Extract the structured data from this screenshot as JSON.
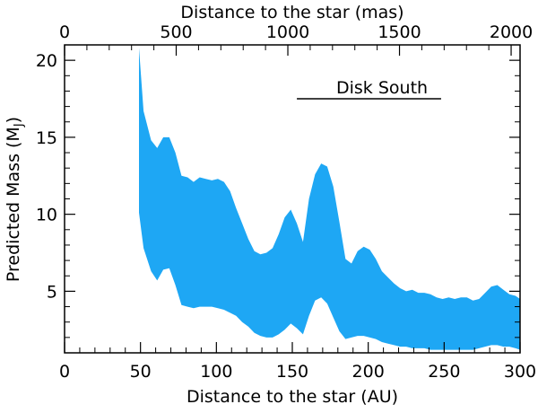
{
  "chart_data": {
    "type": "area",
    "subtype": "band",
    "xlabel": "Distance to the star (AU)",
    "ylabel": "Predicted Mass (M",
    "ylabel_sub": "J",
    "ylabel_close": ")",
    "x2label": "Distance to the star (mas)",
    "annotation": "Disk South",
    "xlim": [
      0,
      300
    ],
    "ylim": [
      1,
      21
    ],
    "x2lim": [
      0,
      2040
    ],
    "x_ticks": [
      0,
      50,
      100,
      150,
      200,
      250,
      300
    ],
    "x_tick_labels": [
      "0",
      "50",
      "100",
      "150",
      "200",
      "250",
      "300"
    ],
    "y_ticks": [
      5,
      10,
      15,
      20
    ],
    "y_tick_labels": [
      "5",
      "10",
      "15",
      "20"
    ],
    "x2_ticks": [
      0,
      500,
      1000,
      1500,
      2000
    ],
    "x2_tick_labels": [
      "0",
      "500",
      "1000",
      "1500",
      "2000"
    ],
    "annotation_line_x": [
      153,
      248
    ],
    "annotation_line_y": 17.5,
    "fill_color": "#1ea7f4",
    "series": [
      {
        "x": [
          49,
          52,
          57,
          61,
          65,
          69,
          73,
          77,
          81,
          85,
          89,
          93,
          97,
          101,
          105,
          109,
          113,
          117,
          121,
          125,
          129,
          133,
          137,
          141,
          145,
          149,
          153,
          157,
          161,
          165,
          169,
          173,
          177,
          181,
          185,
          189,
          193,
          197,
          201,
          205,
          209,
          213,
          217,
          221,
          225,
          229,
          233,
          237,
          241,
          245,
          249,
          253,
          257,
          261,
          265,
          269,
          273,
          277,
          281,
          285,
          289,
          293,
          297,
          300
        ],
        "upper": [
          20.8,
          16.7,
          14.8,
          14.3,
          15.0,
          15.0,
          14.0,
          12.5,
          12.4,
          12.1,
          12.4,
          12.3,
          12.2,
          12.3,
          12.1,
          11.5,
          10.4,
          9.4,
          8.4,
          7.6,
          7.4,
          7.5,
          7.8,
          8.7,
          9.8,
          10.3,
          9.4,
          8.2,
          11.0,
          12.6,
          13.3,
          13.1,
          11.8,
          9.5,
          7.1,
          6.8,
          7.6,
          7.9,
          7.7,
          7.1,
          6.3,
          5.9,
          5.5,
          5.2,
          5.0,
          5.1,
          4.9,
          4.9,
          4.8,
          4.6,
          4.5,
          4.6,
          4.5,
          4.6,
          4.6,
          4.4,
          4.5,
          4.9,
          5.3,
          5.4,
          5.1,
          4.8,
          4.7,
          4.5
        ],
        "lower": [
          10.1,
          7.8,
          6.3,
          5.7,
          6.4,
          6.5,
          5.4,
          4.1,
          4.0,
          3.9,
          4.0,
          4.0,
          4.0,
          3.9,
          3.8,
          3.6,
          3.4,
          3.0,
          2.7,
          2.3,
          2.1,
          2.0,
          2.0,
          2.2,
          2.5,
          2.9,
          2.6,
          2.2,
          3.4,
          4.4,
          4.6,
          4.2,
          3.3,
          2.4,
          1.9,
          2.0,
          2.1,
          2.1,
          2.0,
          1.9,
          1.7,
          1.6,
          1.5,
          1.4,
          1.4,
          1.3,
          1.3,
          1.3,
          1.2,
          1.2,
          1.2,
          1.2,
          1.2,
          1.2,
          1.2,
          1.2,
          1.3,
          1.4,
          1.5,
          1.5,
          1.4,
          1.4,
          1.3,
          1.2
        ]
      }
    ]
  }
}
